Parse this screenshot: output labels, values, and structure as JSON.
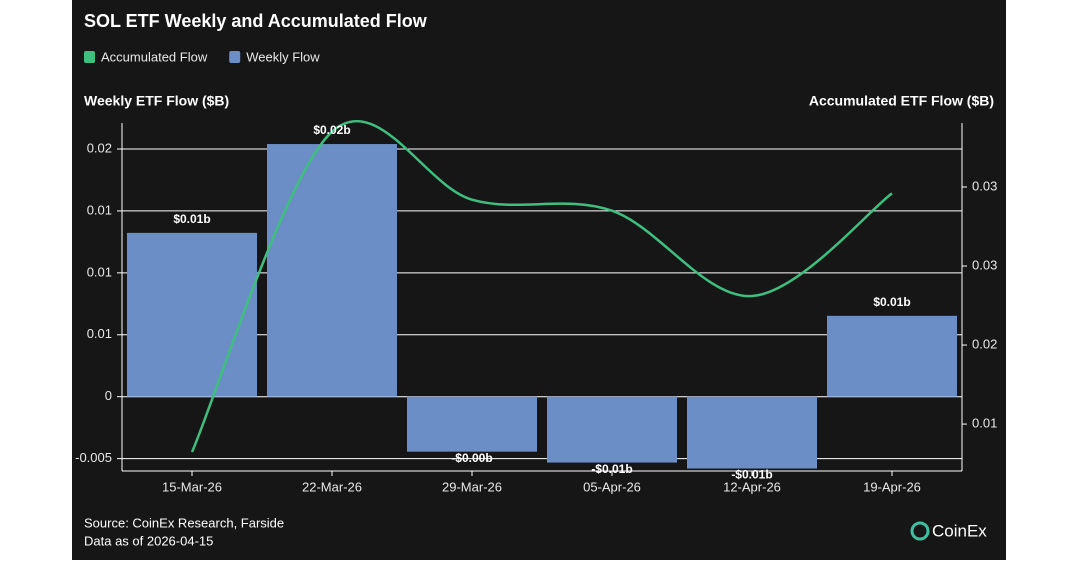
{
  "chart_data": {
    "type": "bar-line",
    "title": "SOL ETF Weekly and Accumulated Flow",
    "y_label": "Weekly ETF Flow ($B)",
    "y2_label": "Accumulated ETF Flow ($B)",
    "categories": [
      "15-Mar-26",
      "22-Mar-26",
      "29-Mar-26",
      "05-Apr-26",
      "12-Apr-26",
      "19-Apr-26"
    ],
    "series": [
      {
        "name": "Accumulated Flow",
        "type": "line",
        "axis": "y2",
        "color": "#3fbf7f",
        "values": [
          0.01323,
          0.0335,
          0.0292,
          0.0285,
          0.0231,
          0.0296
        ]
      },
      {
        "name": "Weekly Flow",
        "type": "bar",
        "color": "#6b8ec6",
        "values": [
          0.01323,
          0.0204,
          -0.00444,
          -0.00532,
          -0.0058,
          0.00653
        ],
        "value_labels": [
          "$0.01b",
          "$0.02b",
          "-$0.00b",
          "-$0.01b",
          "-$0.01b",
          "$0.01b"
        ]
      }
    ],
    "ylim": [
      -0.006,
      0.0221
    ],
    "yticks": [
      -0.005,
      0,
      {
        "value": 0.005,
        "label": "0.01"
      },
      0.01,
      {
        "value": 0.015,
        "label": "0.01"
      },
      0.02
    ],
    "y2lim": [
      0.01203,
      0.03405
    ],
    "y2ticks": [
      {
        "value": 0.015,
        "label": "0.01"
      },
      0.02,
      {
        "value": 0.025,
        "label": "0.03"
      },
      0.03
    ],
    "grid": true,
    "legend": "top-left"
  },
  "footer": {
    "source": "Source: CoinEx Research, Farside",
    "date_note": "Data as of 2026-04-15",
    "logo": "CoinEx"
  }
}
